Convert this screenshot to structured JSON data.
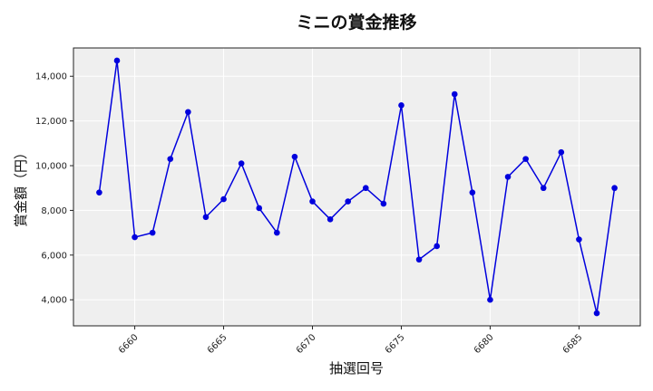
{
  "chart_data": {
    "type": "line",
    "title": "ミニの賞金推移",
    "xlabel": "抽選回号",
    "ylabel": "賞金額（円）",
    "x": [
      6658,
      6659,
      6660,
      6661,
      6662,
      6663,
      6664,
      6665,
      6666,
      6667,
      6668,
      6669,
      6670,
      6671,
      6672,
      6673,
      6674,
      6675,
      6676,
      6677,
      6678,
      6679,
      6680,
      6681,
      6682,
      6683,
      6684,
      6685,
      6686,
      6687
    ],
    "series": [
      {
        "values": [
          8800,
          14700,
          6800,
          7000,
          10300,
          12400,
          7700,
          8500,
          10100,
          8100,
          7000,
          10400,
          8400,
          7600,
          8400,
          9000,
          8300,
          12700,
          5800,
          6400,
          13200,
          8800,
          4000,
          9500,
          10300,
          9000,
          10600,
          6700,
          3400,
          9000
        ]
      }
    ],
    "xlim": [
      6656.55,
      6688.45
    ],
    "ylim": [
      2835,
      15265
    ],
    "x_ticks": [
      6660,
      6665,
      6670,
      6675,
      6680,
      6685
    ],
    "x_tick_labels": [
      "6660",
      "6665",
      "6670",
      "6675",
      "6680",
      "6685"
    ],
    "y_ticks": [
      4000,
      6000,
      8000,
      10000,
      12000,
      14000
    ],
    "y_tick_labels": [
      "4,000",
      "6,000",
      "8,000",
      "10,000",
      "12,000",
      "14,000"
    ],
    "grid": true,
    "colors": {
      "line": "#0000dd",
      "marker": "#0000dd",
      "plot_bg": "#efefef",
      "grid": "#ffffff"
    }
  }
}
